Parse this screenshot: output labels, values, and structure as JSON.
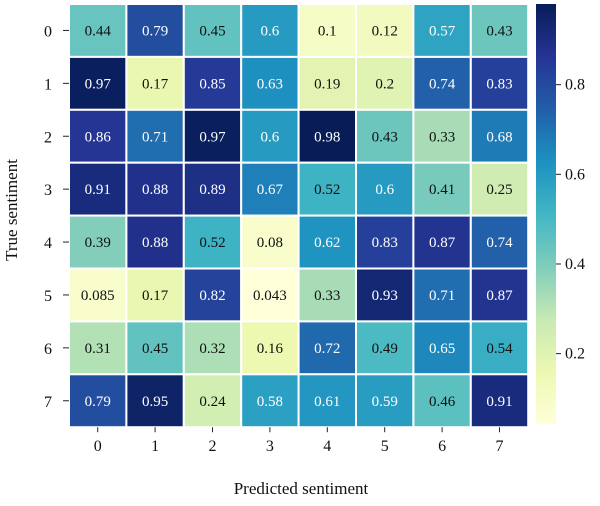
{
  "chart_data": {
    "type": "heatmap",
    "xlabel": "Predicted sentiment",
    "ylabel": "True sentiment",
    "x_categories": [
      "0",
      "1",
      "2",
      "3",
      "4",
      "5",
      "6",
      "7"
    ],
    "y_categories": [
      "0",
      "1",
      "2",
      "3",
      "4",
      "5",
      "6",
      "7"
    ],
    "values": [
      [
        0.44,
        0.79,
        0.45,
        0.6,
        0.1,
        0.12,
        0.57,
        0.43
      ],
      [
        0.97,
        0.17,
        0.85,
        0.63,
        0.19,
        0.2,
        0.74,
        0.83
      ],
      [
        0.86,
        0.71,
        0.97,
        0.6,
        0.98,
        0.43,
        0.33,
        0.68
      ],
      [
        0.91,
        0.88,
        0.89,
        0.67,
        0.52,
        0.6,
        0.41,
        0.25
      ],
      [
        0.39,
        0.88,
        0.52,
        0.08,
        0.62,
        0.83,
        0.87,
        0.74
      ],
      [
        0.085,
        0.17,
        0.82,
        0.043,
        0.33,
        0.93,
        0.71,
        0.87
      ],
      [
        0.31,
        0.45,
        0.32,
        0.16,
        0.72,
        0.49,
        0.65,
        0.54
      ],
      [
        0.79,
        0.95,
        0.24,
        0.58,
        0.61,
        0.59,
        0.46,
        0.91
      ]
    ],
    "value_labels": [
      [
        "0.44",
        "0.79",
        "0.45",
        "0.6",
        "0.1",
        "0.12",
        "0.57",
        "0.43"
      ],
      [
        "0.97",
        "0.17",
        "0.85",
        "0.63",
        "0.19",
        "0.2",
        "0.74",
        "0.83"
      ],
      [
        "0.86",
        "0.71",
        "0.97",
        "0.6",
        "0.98",
        "0.43",
        "0.33",
        "0.68"
      ],
      [
        "0.91",
        "0.88",
        "0.89",
        "0.67",
        "0.52",
        "0.6",
        "0.41",
        "0.25"
      ],
      [
        "0.39",
        "0.88",
        "0.52",
        "0.08",
        "0.62",
        "0.83",
        "0.87",
        "0.74"
      ],
      [
        "0.085",
        "0.17",
        "0.82",
        "0.043",
        "0.33",
        "0.93",
        "0.71",
        "0.87"
      ],
      [
        "0.31",
        "0.45",
        "0.32",
        "0.16",
        "0.72",
        "0.49",
        "0.65",
        "0.54"
      ],
      [
        "0.79",
        "0.95",
        "0.24",
        "0.58",
        "0.61",
        "0.59",
        "0.46",
        "0.91"
      ]
    ],
    "colorbar": {
      "range": [
        0.043,
        0.98
      ],
      "ticks": [
        0.2,
        0.4,
        0.6,
        0.8
      ],
      "tick_labels": [
        "0.2",
        "0.4",
        "0.6",
        "0.8"
      ]
    },
    "colormap": "YlGnBu",
    "colormap_stops": [
      "#ffffd9",
      "#edf8b1",
      "#c7e9b4",
      "#7fcdbb",
      "#41b6c4",
      "#1d91c0",
      "#225ea8",
      "#253494",
      "#081d58"
    ],
    "cell_border_color": "#ffffff",
    "annotation_dark_text": "#111111",
    "annotation_light_text": "#ffffff"
  }
}
